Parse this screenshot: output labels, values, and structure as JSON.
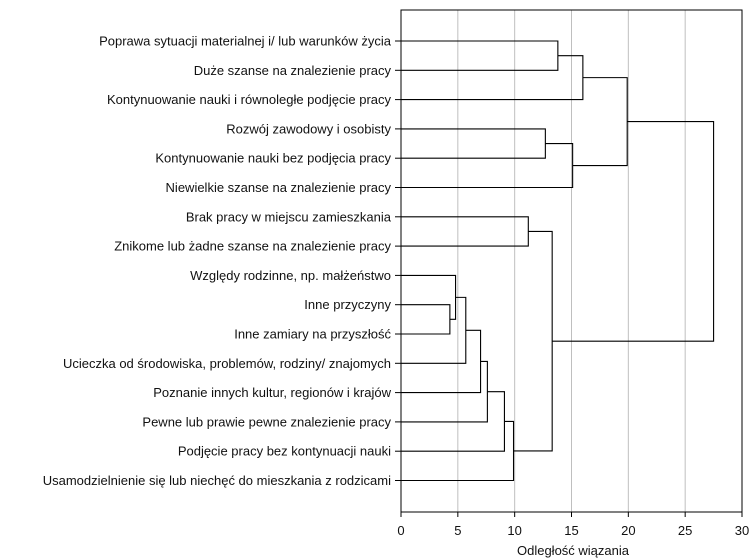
{
  "chart_data": {
    "type": "dendrogram",
    "xlabel": "Odległość wiązania",
    "xlim": [
      0,
      30
    ],
    "xticks": [
      0,
      5,
      10,
      15,
      20,
      25,
      30
    ],
    "grid": true,
    "leaves": [
      "Poprawa sytuacji materialnej i/ lub warunków życia",
      "Duże szanse na znalezienie pracy",
      "Kontynuowanie nauki i równoległe podjęcie pracy",
      "Rozwój zawodowy i osobisty",
      "Kontynuowanie nauki bez podjęcia pracy",
      "Niewielkie szanse na znalezienie pracy",
      "Brak pracy w miejscu zamieszkania",
      "Znikome lub żadne szanse na znalezienie pracy",
      "Względy rodzinne, np. małżeństwo",
      "Inne przyczyny",
      "Inne zamiary na przyszłość",
      "Ucieczka od środowiska, problemów, rodziny/ znajomych",
      "Poznanie innych kultur, regionów i krajów",
      "Pewne lub prawie pewne znalezienie pracy",
      "Podjęcie pracy bez kontynuacji nauki",
      "Usamodzielnienie się lub niechęć do mieszkania z rodzicami"
    ],
    "merges": [
      {
        "a": "L9",
        "b": "L10",
        "distance": 4.3
      },
      {
        "a": "L8",
        "b": "C0",
        "distance": 4.8
      },
      {
        "a": "C1",
        "b": "L11",
        "distance": 5.7
      },
      {
        "a": "C2",
        "b": "L12",
        "distance": 7.0
      },
      {
        "a": "C3",
        "b": "L13",
        "distance": 7.6
      },
      {
        "a": "C4",
        "b": "L14",
        "distance": 9.1
      },
      {
        "a": "C5",
        "b": "L15",
        "distance": 9.9
      },
      {
        "a": "L6",
        "b": "L7",
        "distance": 11.2
      },
      {
        "a": "L3",
        "b": "L4",
        "distance": 12.7
      },
      {
        "a": "L0",
        "b": "L1",
        "distance": 13.8
      },
      {
        "a": "C7",
        "b": "C6",
        "distance": 13.3
      },
      {
        "a": "C8",
        "b": "L5",
        "distance": 15.1
      },
      {
        "a": "C9",
        "b": "L2",
        "distance": 16.0
      },
      {
        "a": "C12",
        "b": "C11",
        "distance": 19.9
      },
      {
        "a": "C13",
        "b": "C10",
        "distance": 27.5
      }
    ]
  }
}
